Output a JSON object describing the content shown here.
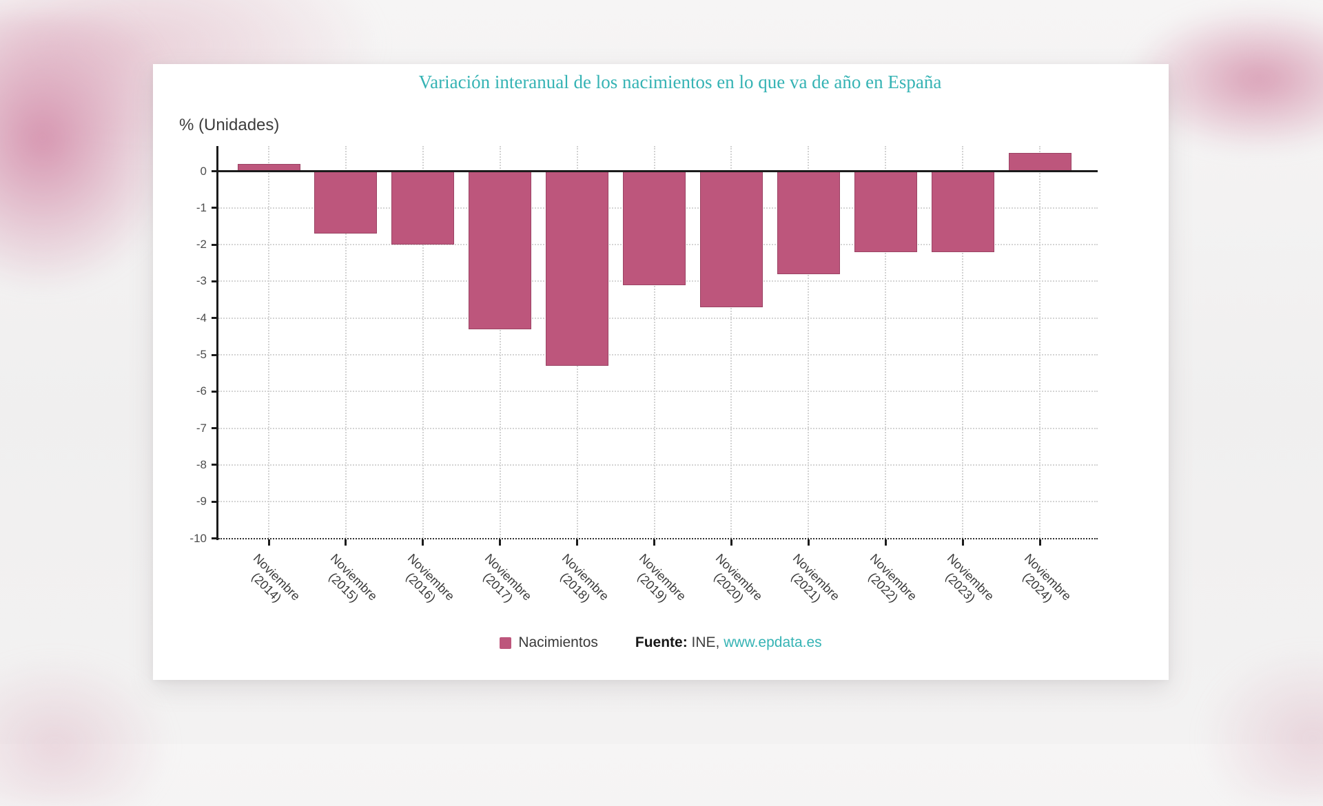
{
  "chart_data": {
    "type": "bar",
    "title": "Variación interanual de los nacimientos en lo que va de año en España",
    "ylabel": "% (Unidades)",
    "categories": [
      "Noviembre (2014)",
      "Noviembre (2015)",
      "Noviembre (2016)",
      "Noviembre (2017)",
      "Noviembre (2018)",
      "Noviembre (2019)",
      "Noviembre (2020)",
      "Noviembre (2021)",
      "Noviembre (2022)",
      "Noviembre (2023)",
      "Noviembre (2024)"
    ],
    "values": [
      0.2,
      -1.7,
      -2.0,
      -4.3,
      -5.3,
      -3.1,
      -3.7,
      -2.8,
      -2.2,
      -2.2,
      0.5
    ],
    "series_name": "Nacimientos",
    "ylim": [
      0.7,
      -10.1
    ],
    "yticks": [
      0,
      -1,
      -2,
      -3,
      -4,
      -5,
      -6,
      -7,
      -8,
      -9,
      -10
    ],
    "grid": true,
    "legend_position": "bottom"
  },
  "source": {
    "prefix": "Fuente:",
    "org": "INE,",
    "link": "www.epdata.es"
  },
  "colors": {
    "bar": "#bd567c",
    "accent_teal": "#35b3b4",
    "background_pink": "#d490ac",
    "card": "#ffffff"
  }
}
